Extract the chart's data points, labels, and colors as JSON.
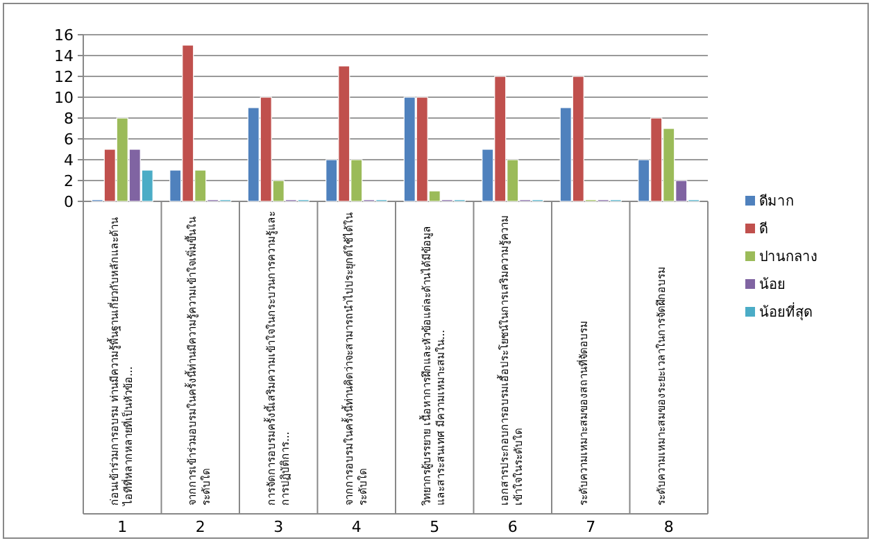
{
  "chart_data": {
    "type": "bar",
    "categories": [
      "ก่อนเข้าร่วมการอบรม ท่านมีความรู้พื้นฐานเกี่ยวกับหลักและด้านไอทีที่หลากหลายที่เป็นหัวข้อ...",
      "จากการเข้าร่วมอบรมในครั้งนี้ท่านมีความรู้ความเข้าใจเพิ่มขึ้นในระดับใด",
      "การจัดการอบรมครั้งนี้เสริมความเข้าใจในกระบวนการความรู้และการปฏิบัติการ...",
      "จากการอบรมในครั้งนี้ท่านคิดว่าจะสามารถนำไปประยุกต์ใช้ได้ในระดับใด",
      "วิทยากรผู้บรรยาย เนื้อหาการฝึกและหัวข้อแต่ละด้านได้มีข้อมูลและสาระสนเทศ มีความเหมาะสมใน...",
      "เอกสารประกอบการอบรมเอื้อประโยชน์ในการเสริมความรู้ความเข้าใจในระดับใด",
      "ระดับความเหมาะสมของสถานที่จัดอบรม",
      "ระดับความเหมาะสมของระยะเวลาในการจัดฝึกอบรม"
    ],
    "series": [
      {
        "name": "ดีมาก",
        "color": "#4f81bd",
        "values": [
          0,
          3,
          9,
          4,
          10,
          5,
          9,
          4
        ]
      },
      {
        "name": "ดี",
        "color": "#c0504d",
        "values": [
          5,
          15,
          10,
          13,
          10,
          12,
          12,
          8
        ]
      },
      {
        "name": "ปานกลาง",
        "color": "#9bbb59",
        "values": [
          8,
          3,
          2,
          4,
          1,
          4,
          0,
          7
        ]
      },
      {
        "name": "น้อย",
        "color": "#8064a2",
        "values": [
          5,
          0,
          0,
          0,
          0,
          0,
          0,
          2
        ]
      },
      {
        "name": "น้อยที่สุด",
        "color": "#4bacc6",
        "values": [
          3,
          0,
          0,
          0,
          0,
          0,
          0,
          0
        ]
      }
    ],
    "ylim": [
      0,
      16
    ],
    "yticks": [
      0,
      2,
      4,
      6,
      8,
      10,
      12,
      14,
      16
    ],
    "grid": "y",
    "legend": "right",
    "annotations": [
      "1",
      "2",
      "3",
      "4",
      "5",
      "6",
      "7",
      "8"
    ]
  }
}
